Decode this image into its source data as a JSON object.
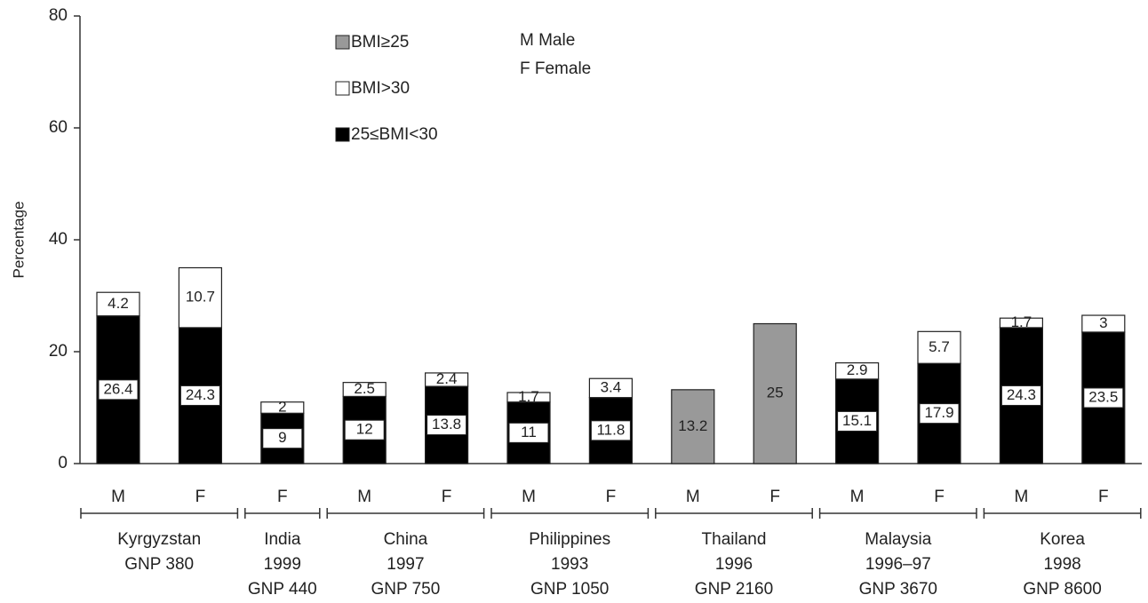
{
  "chart_data": {
    "type": "bar",
    "stacked": true,
    "y_label": "Percentage",
    "ylim": [
      0,
      80
    ],
    "yticks": [
      0,
      20,
      40,
      60,
      80
    ],
    "notes": [
      "M Male",
      "F Female"
    ],
    "categories": [
      "M",
      "F",
      "F",
      "M",
      "F",
      "M",
      "F",
      "M",
      "F",
      "M",
      "F",
      "M",
      "F"
    ],
    "groups": [
      {
        "lines": [
          "Kyrgyzstan",
          "GNP 380"
        ],
        "size": 2
      },
      {
        "lines": [
          "India",
          "1999",
          "GNP 440"
        ],
        "size": 1
      },
      {
        "lines": [
          "China",
          "1997",
          "GNP 750"
        ],
        "size": 2
      },
      {
        "lines": [
          "Philippines",
          "1993",
          "GNP 1050"
        ],
        "size": 2
      },
      {
        "lines": [
          "Thailand",
          "1996",
          "GNP 2160"
        ],
        "size": 2
      },
      {
        "lines": [
          "Malaysia",
          "1996–97",
          "GNP 3670"
        ],
        "size": 2
      },
      {
        "lines": [
          "Korea",
          "1998",
          "GNP 8600"
        ],
        "size": 2
      }
    ],
    "series": [
      {
        "name": "25≤BMI<30",
        "color": "#000000",
        "values": [
          26.4,
          24.3,
          9,
          12,
          13.8,
          11,
          11.8,
          null,
          null,
          15.1,
          17.9,
          24.3,
          23.5
        ]
      },
      {
        "name": "BMI>30",
        "color": "#ffffff",
        "values": [
          4.2,
          10.7,
          2,
          2.5,
          2.4,
          1.7,
          3.4,
          null,
          null,
          2.9,
          5.7,
          1.7,
          3
        ]
      },
      {
        "name": "BMI≥25",
        "color": "#999999",
        "values": [
          null,
          null,
          null,
          null,
          null,
          null,
          null,
          13.2,
          25,
          null,
          null,
          null,
          null
        ]
      }
    ]
  }
}
